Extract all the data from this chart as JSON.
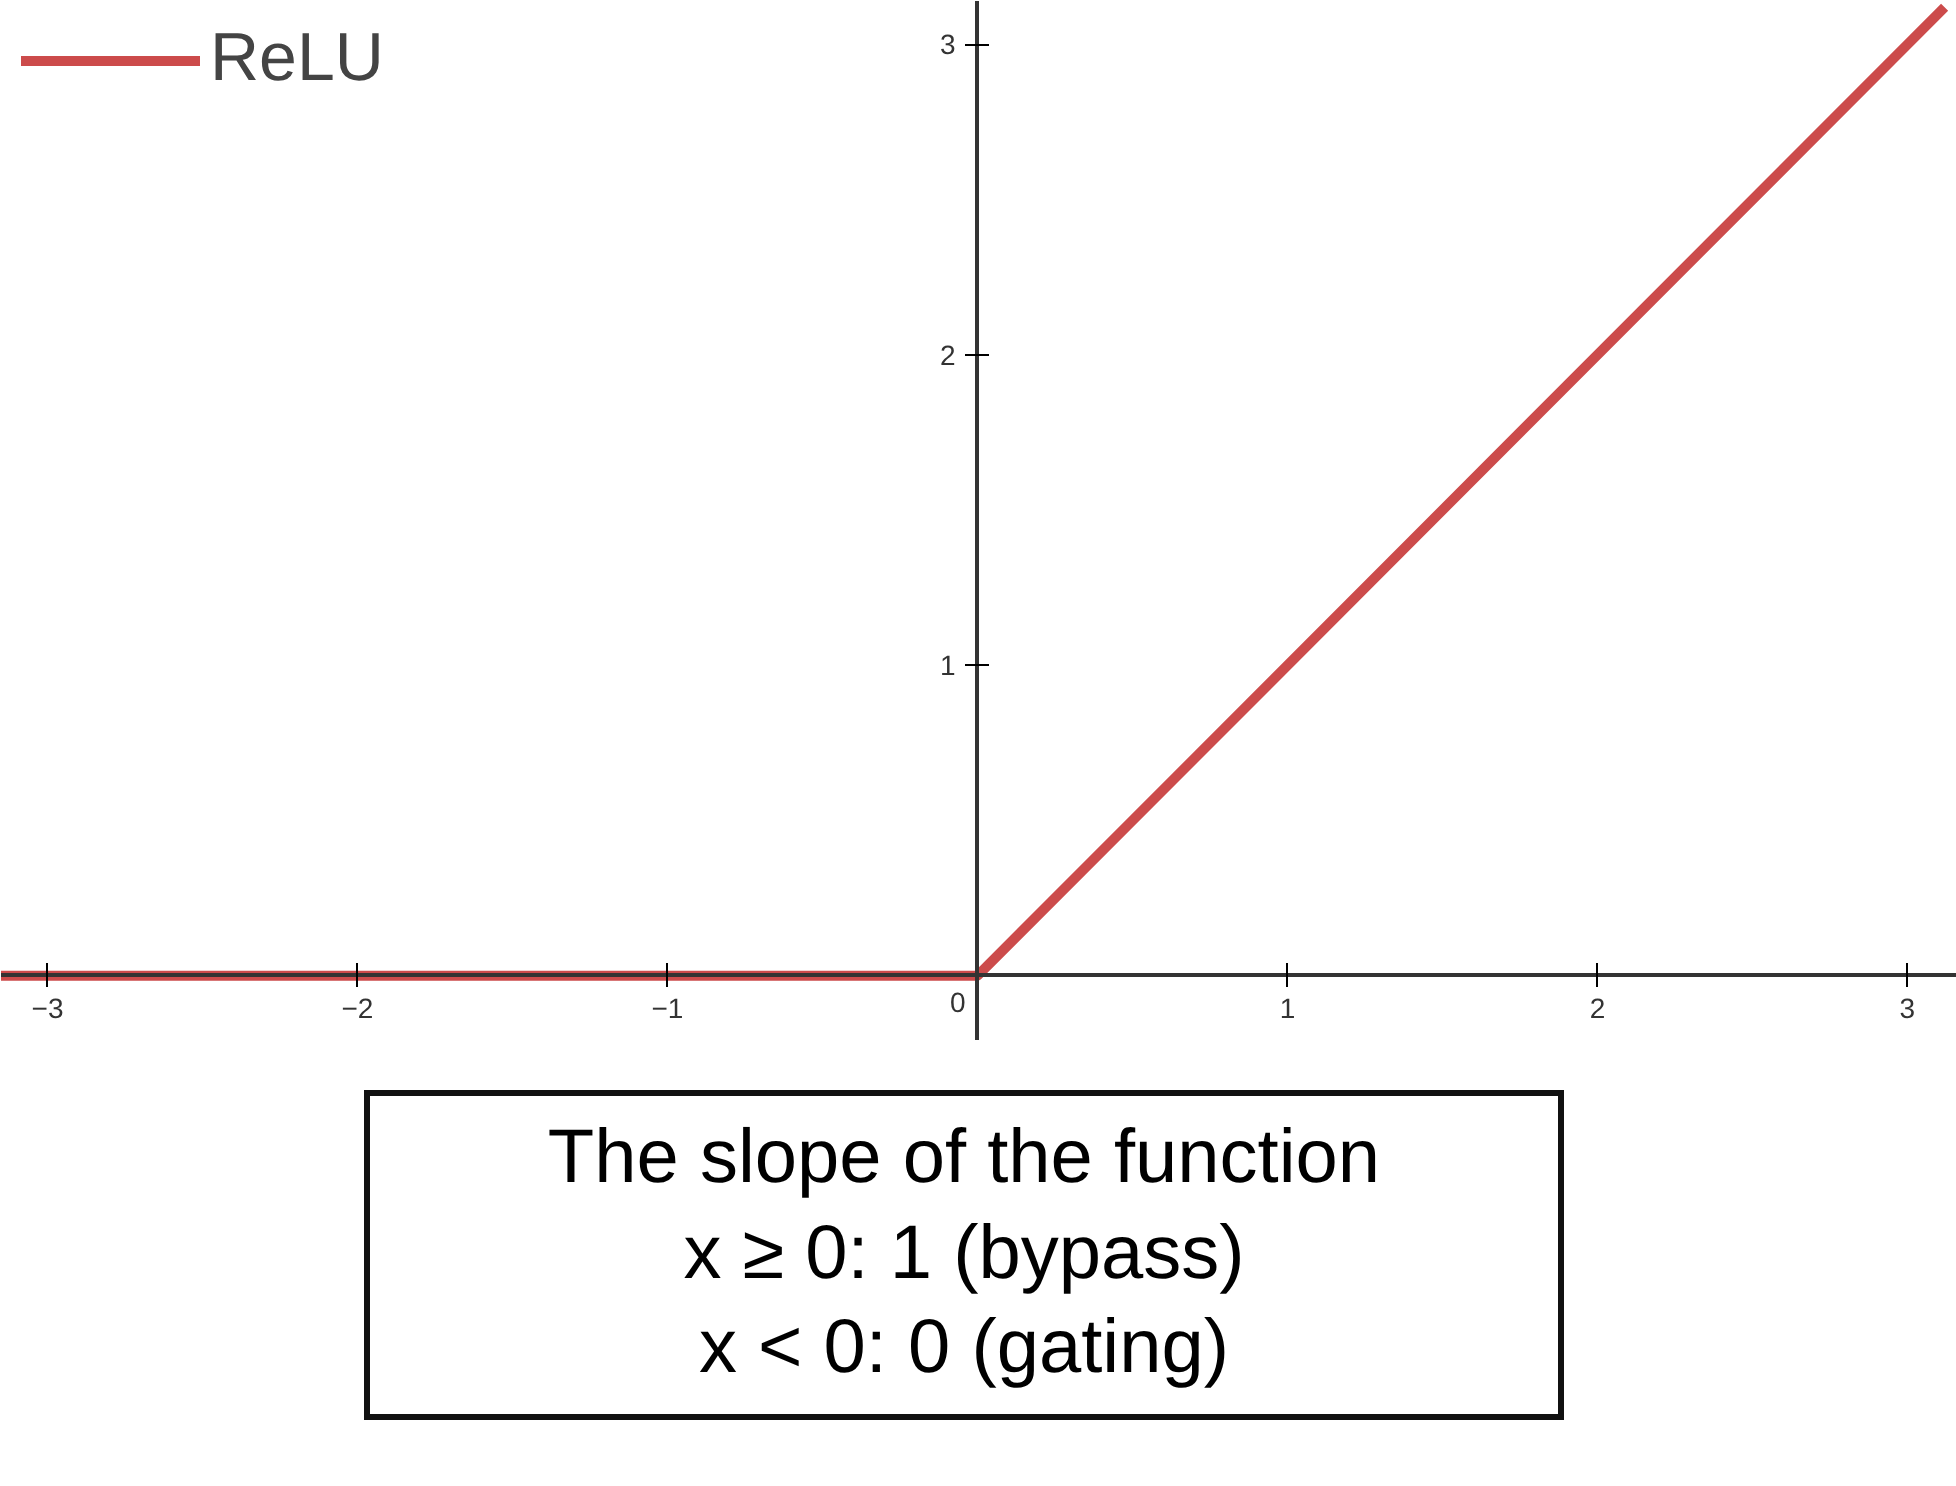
{
  "chart_data": {
    "type": "line",
    "x": [
      -3.15,
      0,
      3.12
    ],
    "series": [
      {
        "name": "ReLU",
        "color": "#cc4b4b",
        "values": [
          0,
          0,
          3.12
        ]
      }
    ],
    "xlim": [
      -3.15,
      3.16
    ],
    "ylim": [
      -0.21,
      3.14
    ],
    "xticks": [
      -3,
      -2,
      -1,
      0,
      1,
      2,
      3
    ],
    "yticks": [
      1,
      2,
      3
    ],
    "grid": false,
    "legend": "top left",
    "marker": "none",
    "line_style": "solid",
    "annotations": [
      "The slope of the function\nx ≥ 0: 1 (bypass)\nx < 0: 0 (gating)"
    ]
  }
}
